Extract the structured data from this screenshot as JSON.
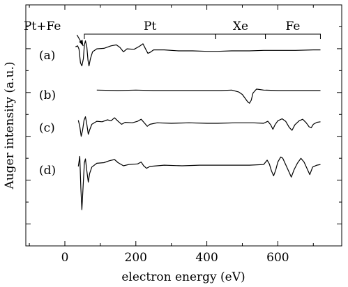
{
  "chart_data": {
    "type": "line",
    "title": "",
    "xlabel": "electron energy (eV)",
    "ylabel": "Auger intensity (a.u.)",
    "xlim": [
      -110,
      780
    ],
    "yticks_labeled": false,
    "xticks": [
      0,
      200,
      400,
      600
    ],
    "xtick_labels": [
      "0",
      "200",
      "400",
      "600"
    ],
    "grid": false,
    "annotations": [
      {
        "text": "Pt+Fe",
        "arrow_to_energy": 40
      },
      {
        "text": "Pt",
        "range": [
          55,
          425
        ]
      },
      {
        "text": "Xe",
        "range": [
          425,
          565
        ]
      },
      {
        "text": "Fe",
        "range": [
          565,
          720
        ]
      }
    ],
    "series": [
      {
        "name": "(a)",
        "points": [
          [
            30,
            0.8
          ],
          [
            36,
            1.0
          ],
          [
            40,
            0.35
          ],
          [
            44,
            -2.4
          ],
          [
            48,
            -3.0
          ],
          [
            52,
            -1.6
          ],
          [
            55,
            1.2
          ],
          [
            58,
            2.0
          ],
          [
            62,
            0.8
          ],
          [
            65,
            -1.8
          ],
          [
            68,
            -3.0
          ],
          [
            72,
            -1.6
          ],
          [
            78,
            -0.2
          ],
          [
            90,
            0.4
          ],
          [
            110,
            0.5
          ],
          [
            130,
            1.0
          ],
          [
            145,
            1.2
          ],
          [
            155,
            0.7
          ],
          [
            165,
            -0.2
          ],
          [
            175,
            0.4
          ],
          [
            195,
            0.3
          ],
          [
            210,
            0.9
          ],
          [
            220,
            1.4
          ],
          [
            228,
            0.3
          ],
          [
            234,
            -0.5
          ],
          [
            240,
            -0.3
          ],
          [
            250,
            0.2
          ],
          [
            280,
            0.2
          ],
          [
            320,
            0.0
          ],
          [
            360,
            0.0
          ],
          [
            400,
            -0.1
          ],
          [
            430,
            -0.1
          ],
          [
            470,
            0.0
          ],
          [
            520,
            0.0
          ],
          [
            560,
            0.1
          ],
          [
            600,
            0.1
          ],
          [
            650,
            0.1
          ],
          [
            700,
            0.2
          ],
          [
            720,
            0.2
          ]
        ]
      },
      {
        "name": "(b)",
        "points": [
          [
            90,
            0.1
          ],
          [
            150,
            0.0
          ],
          [
            200,
            0.1
          ],
          [
            250,
            0.0
          ],
          [
            300,
            0.0
          ],
          [
            350,
            0.0
          ],
          [
            400,
            0.0
          ],
          [
            440,
            0.0
          ],
          [
            470,
            0.1
          ],
          [
            490,
            -0.3
          ],
          [
            500,
            -0.8
          ],
          [
            510,
            -1.8
          ],
          [
            515,
            -2.3
          ],
          [
            520,
            -2.6
          ],
          [
            525,
            -2.0
          ],
          [
            530,
            -0.5
          ],
          [
            540,
            0.3
          ],
          [
            560,
            0.1
          ],
          [
            600,
            0.0
          ],
          [
            650,
            0.0
          ],
          [
            700,
            0.0
          ],
          [
            720,
            0.0
          ]
        ]
      },
      {
        "name": "(c)",
        "points": [
          [
            38,
            0.6
          ],
          [
            42,
            -0.6
          ],
          [
            46,
            -2.6
          ],
          [
            50,
            -1.4
          ],
          [
            54,
            0.6
          ],
          [
            58,
            1.3
          ],
          [
            62,
            -0.2
          ],
          [
            66,
            -2.2
          ],
          [
            70,
            -1.3
          ],
          [
            76,
            -0.2
          ],
          [
            90,
            0.4
          ],
          [
            105,
            0.3
          ],
          [
            120,
            0.7
          ],
          [
            130,
            0.5
          ],
          [
            140,
            1.1
          ],
          [
            150,
            0.4
          ],
          [
            160,
            -0.2
          ],
          [
            170,
            0.2
          ],
          [
            190,
            0.1
          ],
          [
            205,
            0.4
          ],
          [
            215,
            0.8
          ],
          [
            225,
            0.0
          ],
          [
            232,
            -0.6
          ],
          [
            240,
            -0.2
          ],
          [
            260,
            0.1
          ],
          [
            300,
            0.0
          ],
          [
            350,
            0.1
          ],
          [
            400,
            0.0
          ],
          [
            430,
            0.0
          ],
          [
            480,
            0.1
          ],
          [
            530,
            0.1
          ],
          [
            560,
            0.0
          ],
          [
            572,
            0.4
          ],
          [
            580,
            -0.3
          ],
          [
            586,
            -1.2
          ],
          [
            592,
            -0.3
          ],
          [
            600,
            0.5
          ],
          [
            612,
            0.9
          ],
          [
            622,
            0.4
          ],
          [
            632,
            -0.8
          ],
          [
            640,
            -1.4
          ],
          [
            648,
            -0.3
          ],
          [
            660,
            0.5
          ],
          [
            670,
            0.8
          ],
          [
            680,
            0.1
          ],
          [
            688,
            -0.7
          ],
          [
            694,
            -0.9
          ],
          [
            700,
            -0.2
          ],
          [
            710,
            0.2
          ],
          [
            720,
            0.3
          ]
        ]
      },
      {
        "name": "(d)",
        "points": [
          [
            38,
            -0.1
          ],
          [
            42,
            1.5
          ],
          [
            45,
            -3.5
          ],
          [
            48,
            -7.0
          ],
          [
            52,
            -2.6
          ],
          [
            55,
            0.5
          ],
          [
            58,
            1.1
          ],
          [
            62,
            -0.8
          ],
          [
            66,
            -2.6
          ],
          [
            70,
            -1.2
          ],
          [
            76,
            -0.2
          ],
          [
            90,
            0.4
          ],
          [
            110,
            0.5
          ],
          [
            125,
            0.8
          ],
          [
            140,
            1.0
          ],
          [
            150,
            0.5
          ],
          [
            165,
            0.0
          ],
          [
            180,
            0.2
          ],
          [
            205,
            0.3
          ],
          [
            215,
            0.6
          ],
          [
            222,
            0.0
          ],
          [
            230,
            -0.4
          ],
          [
            240,
            -0.1
          ],
          [
            280,
            0.1
          ],
          [
            330,
            0.0
          ],
          [
            380,
            0.1
          ],
          [
            420,
            0.1
          ],
          [
            470,
            0.1
          ],
          [
            520,
            0.1
          ],
          [
            560,
            0.2
          ],
          [
            570,
            0.9
          ],
          [
            576,
            0.3
          ],
          [
            582,
            -0.8
          ],
          [
            588,
            -1.6
          ],
          [
            594,
            -0.7
          ],
          [
            600,
            0.6
          ],
          [
            608,
            1.4
          ],
          [
            614,
            1.2
          ],
          [
            622,
            0.2
          ],
          [
            630,
            -0.8
          ],
          [
            638,
            -1.8
          ],
          [
            646,
            -0.6
          ],
          [
            655,
            0.4
          ],
          [
            665,
            1.2
          ],
          [
            674,
            0.6
          ],
          [
            682,
            -0.4
          ],
          [
            690,
            -1.4
          ],
          [
            698,
            -0.2
          ],
          [
            710,
            0.1
          ],
          [
            720,
            0.2
          ]
        ]
      }
    ]
  }
}
